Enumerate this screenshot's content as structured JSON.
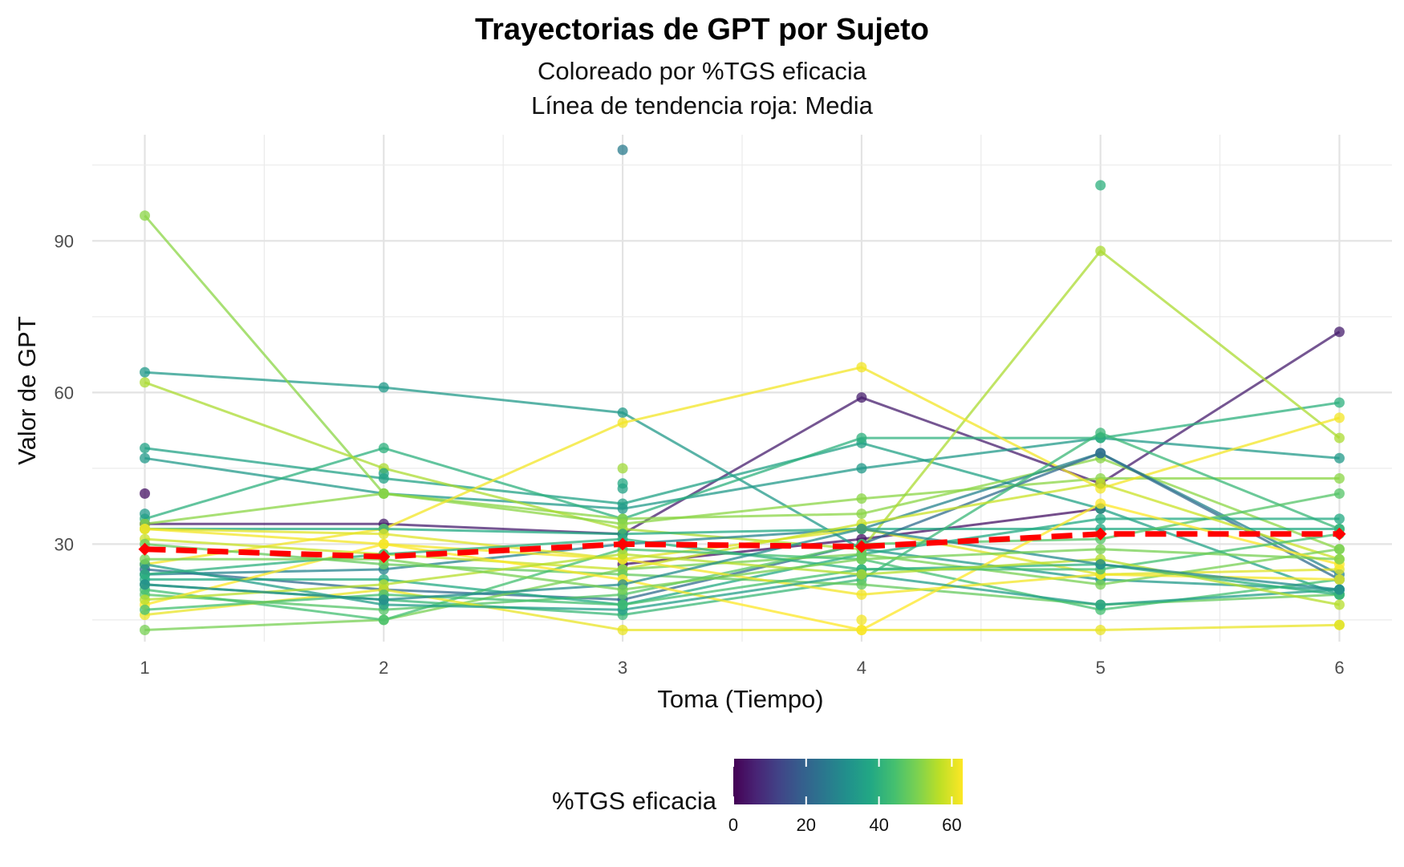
{
  "chart_data": {
    "type": "line",
    "title": "Trayectorias de GPT por Sujeto",
    "subtitle_lines": [
      "Coloreado por %TGS eficacia",
      "Línea de tendencia roja: Media"
    ],
    "xlabel": "Toma (Tiempo)",
    "ylabel": "Valor de GPT",
    "x_ticks": [
      1,
      2,
      3,
      4,
      5,
      6
    ],
    "y_ticks": [
      30,
      60,
      90
    ],
    "xlim": [
      0.78,
      6.22
    ],
    "ylim": [
      10.7,
      111
    ],
    "grid": true,
    "legend": {
      "title": "%TGS eficacia",
      "position": "bottom",
      "range": [
        0,
        63
      ],
      "ticks": [
        0,
        20,
        40,
        60
      ]
    },
    "mean_line": {
      "color": "#ff0000",
      "style": "dashed",
      "x": [
        1,
        2,
        3,
        4,
        5,
        6
      ],
      "values": [
        29,
        27.5,
        30,
        29.5,
        32,
        32
      ]
    },
    "series": [
      {
        "tgs": 5,
        "values": [
          34,
          34,
          32,
          59,
          42,
          72
        ]
      },
      {
        "tgs": 3,
        "values": [
          40,
          null,
          26,
          31,
          37,
          null
        ]
      },
      {
        "tgs": 34,
        "values": [
          64,
          61,
          56,
          29,
          23,
          21
        ]
      },
      {
        "tgs": 36,
        "values": [
          49,
          43,
          38,
          50,
          37,
          20
        ]
      },
      {
        "tgs": 34,
        "values": [
          47,
          40,
          37,
          45,
          51,
          47
        ]
      },
      {
        "tgs": 40,
        "values": [
          35,
          49,
          35,
          51,
          51,
          58
        ]
      },
      {
        "tgs": 52,
        "values": [
          95,
          40,
          35,
          36,
          47,
          29
        ]
      },
      {
        "tgs": 55,
        "values": [
          62,
          45,
          33,
          29,
          88,
          51
        ]
      },
      {
        "tgs": 52,
        "values": [
          34,
          40,
          34,
          39,
          43,
          43
        ]
      },
      {
        "tgs": 62,
        "values": [
          26,
          33,
          54,
          65,
          41,
          55
        ]
      },
      {
        "tgs": 28,
        "values": [
          24,
          25,
          30,
          33,
          48,
          24
        ]
      },
      {
        "tgs": 38,
        "values": [
          33,
          33,
          32,
          33,
          33,
          33
        ]
      },
      {
        "tgs": 60,
        "values": [
          33,
          32,
          27,
          33,
          24,
          25
        ]
      },
      {
        "tgs": 22,
        "values": [
          25,
          21,
          19,
          30,
          48,
          23
        ]
      },
      {
        "tgs": 42,
        "values": [
          22,
          19,
          16,
          23,
          52,
          33
        ]
      },
      {
        "tgs": 46,
        "values": [
          20,
          17,
          20,
          30,
          31,
          40
        ]
      },
      {
        "tgs": 38,
        "values": [
          23,
          23,
          18,
          28,
          35,
          35
        ]
      },
      {
        "tgs": 58,
        "values": [
          31,
          28,
          25,
          34,
          42,
          27
        ]
      },
      {
        "tgs": 50,
        "values": [
          13,
          15,
          25,
          28,
          22,
          29
        ]
      },
      {
        "tgs": 48,
        "values": [
          30,
          26,
          24,
          22,
          18,
          20
        ]
      },
      {
        "tgs": 44,
        "values": [
          21,
          15,
          29,
          27,
          17,
          23
        ]
      },
      {
        "tgs": 61,
        "values": [
          16,
          21,
          13,
          13,
          13,
          14
        ]
      },
      {
        "tgs": 63,
        "values": [
          18,
          30,
          23,
          13,
          38,
          26
        ]
      },
      {
        "tgs": 62,
        "values": [
          33,
          30,
          27,
          20,
          24,
          23
        ]
      },
      {
        "tgs": 35,
        "values": [
          26,
          18,
          17,
          24,
          18,
          21
        ]
      },
      {
        "tgs": 44,
        "values": [
          17,
          20,
          18,
          25,
          25,
          32
        ]
      },
      {
        "tgs": 40,
        "values": [
          24,
          28,
          31,
          25,
          26,
          20
        ]
      },
      {
        "tgs": 56,
        "values": [
          19,
          22,
          28,
          24,
          27,
          18
        ]
      },
      {
        "tgs": 30,
        "values": [
          22,
          19,
          22,
          33,
          26,
          21
        ]
      },
      {
        "tgs": 50,
        "values": [
          27,
          27,
          21,
          27,
          29,
          27
        ]
      }
    ],
    "extra_points": [
      {
        "x": 3,
        "value": 108,
        "tgs": 26
      },
      {
        "x": 5,
        "value": 101,
        "tgs": 40
      },
      {
        "x": 3,
        "value": 42,
        "tgs": 38
      },
      {
        "x": 3,
        "value": 45,
        "tgs": 54
      },
      {
        "x": 2,
        "value": 44,
        "tgs": 36
      },
      {
        "x": 3,
        "value": 41,
        "tgs": 36
      },
      {
        "x": 1,
        "value": 36,
        "tgs": 34
      },
      {
        "x": 4,
        "value": 15,
        "tgs": 62
      },
      {
        "x": 6,
        "value": 14,
        "tgs": 60
      }
    ]
  }
}
